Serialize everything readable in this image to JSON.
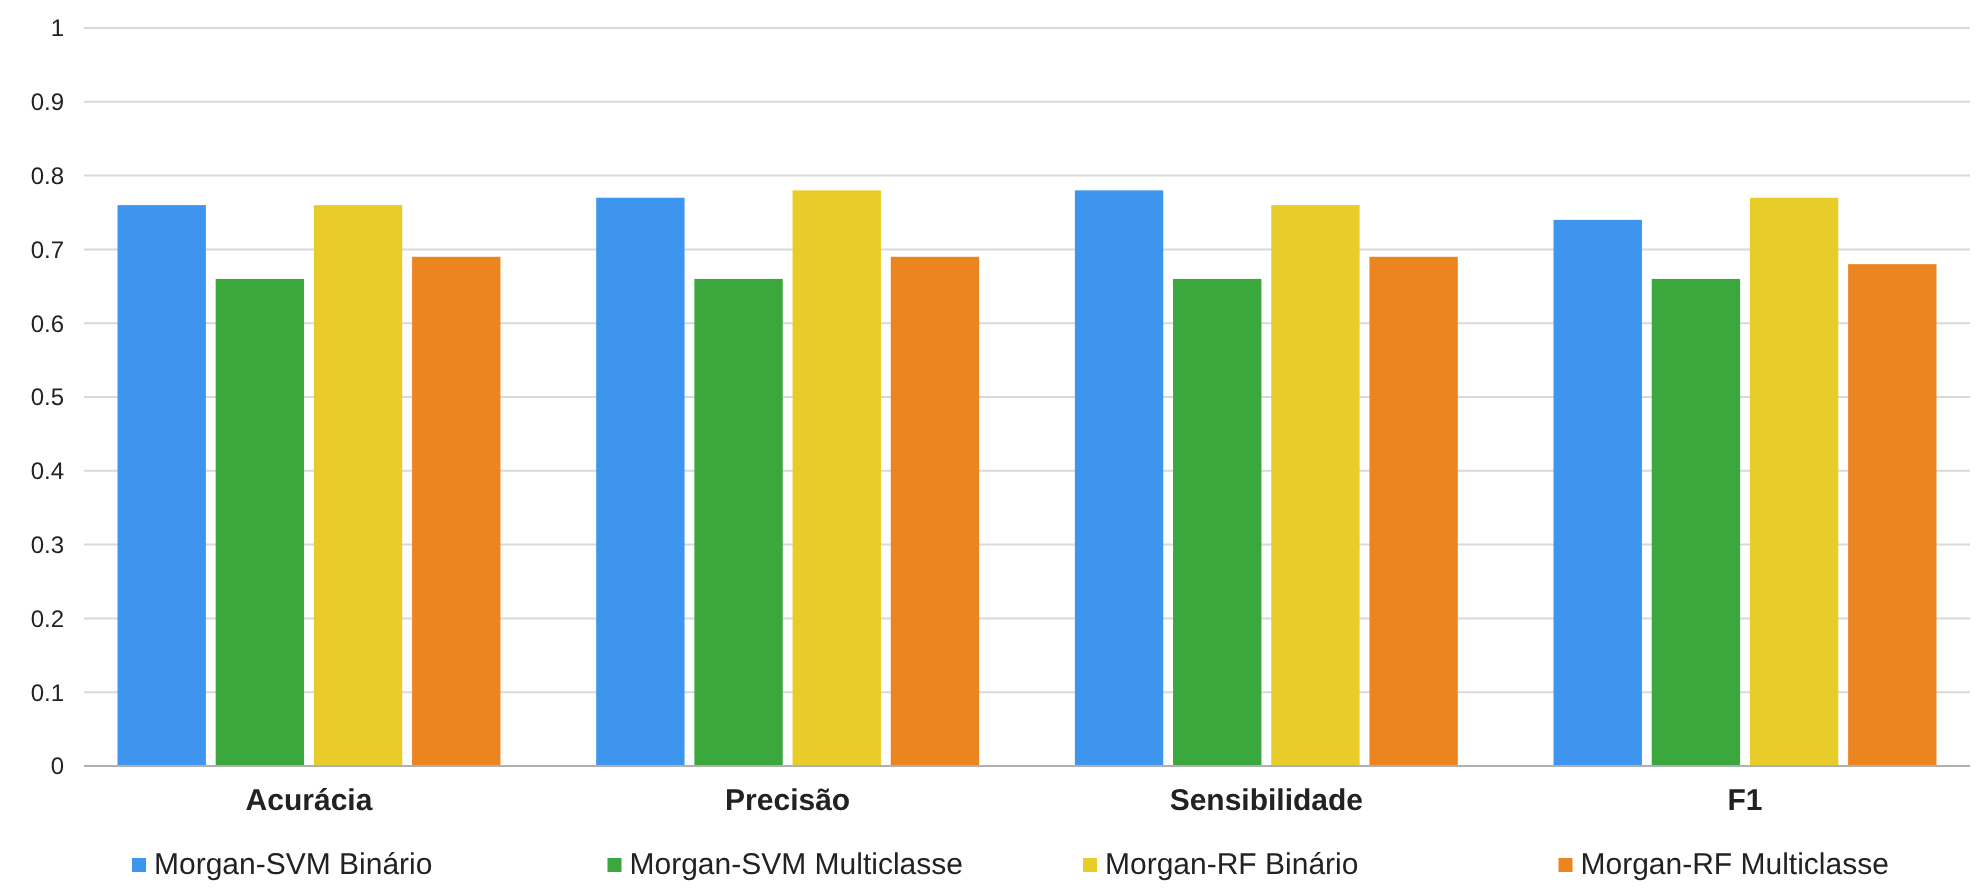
{
  "chart_data": {
    "type": "bar",
    "categories": [
      "Acurácia",
      "Precisão",
      "Sensibilidade",
      "F1"
    ],
    "series": [
      {
        "name": "Morgan-SVM Binário",
        "color": "#3d95ee",
        "values": [
          0.76,
          0.77,
          0.78,
          0.74
        ]
      },
      {
        "name": "Morgan-SVM Multiclasse",
        "color": "#3aa83c",
        "values": [
          0.66,
          0.66,
          0.66,
          0.66
        ]
      },
      {
        "name": "Morgan-RF Binário",
        "color": "#e8cc2a",
        "values": [
          0.76,
          0.78,
          0.76,
          0.77
        ]
      },
      {
        "name": "Morgan-RF Multiclasse",
        "color": "#ec8420",
        "values": [
          0.69,
          0.69,
          0.69,
          0.68
        ]
      }
    ],
    "ylim": [
      0,
      1
    ],
    "yticks": [
      0,
      0.1,
      0.2,
      0.3,
      0.4,
      0.5,
      0.6,
      0.7,
      0.8,
      0.9,
      1
    ],
    "grid": "y",
    "legend": "bottom"
  }
}
